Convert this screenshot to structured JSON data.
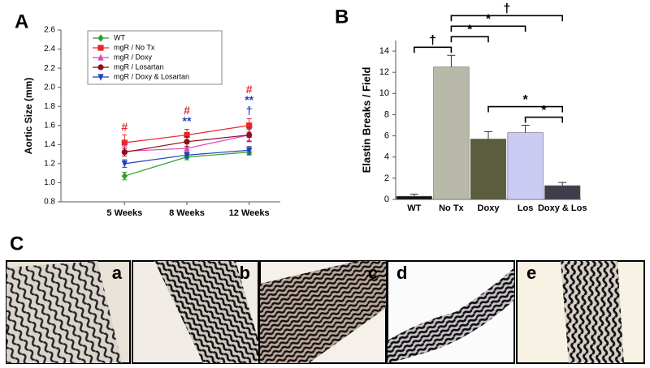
{
  "panel_labels": [
    "A",
    "B",
    "C"
  ],
  "chart_data": [
    {
      "type": "line",
      "ylabel": "Aortic Size (mm)",
      "categories": [
        "5 Weeks",
        "8 Weeks",
        "12 Weeks"
      ],
      "ylim": [
        0.8,
        2.6
      ],
      "yticks": [
        0.8,
        {
          "value": 1,
          "label": "1.0"
        },
        1.2,
        1.4,
        1.6,
        1.8,
        {
          "value": 2,
          "label": "2.0"
        },
        2.2,
        2.4,
        2.6
      ],
      "legend": "top-left",
      "series": [
        {
          "name": "WT",
          "color": "#2e9e2e",
          "marker": "diamond",
          "values": [
            1.07,
            1.27,
            1.32
          ],
          "errors": [
            0.04,
            0.03,
            0.03
          ]
        },
        {
          "name": "mgR / No Tx",
          "color": "#e8262a",
          "marker": "square",
          "values": [
            1.42,
            1.5,
            1.6
          ],
          "errors": [
            0.08,
            0.06,
            0.07
          ]
        },
        {
          "name": "mgR / Doxy",
          "color": "#e040c0",
          "marker": "triangle",
          "values": [
            1.33,
            1.36,
            1.5
          ],
          "errors": [
            0.05,
            0.05,
            0.06
          ]
        },
        {
          "name": "mgR / Losartan",
          "color": "#8b0f1a",
          "marker": "circle",
          "values": [
            1.32,
            1.43,
            1.5
          ],
          "errors": [
            0.04,
            0.05,
            0.07
          ]
        },
        {
          "name": "mgR / Doxy & Losartan",
          "color": "#1f3fbf",
          "marker": "triangle-down",
          "values": [
            1.2,
            1.29,
            1.34
          ],
          "errors": [
            0.04,
            0.03,
            0.04
          ]
        }
      ],
      "annotations": [
        {
          "text": "#",
          "color": "#e8262a",
          "at": "5 Weeks"
        },
        {
          "text": "**",
          "color": "#1f3fbf",
          "at": "8 Weeks"
        },
        {
          "text": "#",
          "color": "#e8262a",
          "at": "8 Weeks"
        },
        {
          "text": "†",
          "color": "#1f3fbf",
          "at": "12 Weeks"
        },
        {
          "text": "**",
          "color": "#1f3fbf",
          "at": "12 Weeks"
        },
        {
          "text": "#",
          "color": "#e8262a",
          "at": "12 Weeks"
        }
      ]
    },
    {
      "type": "bar",
      "ylabel": "Elastin Breaks / Field",
      "categories": [
        "WT",
        "No Tx",
        "Doxy",
        "Los",
        "Doxy & Los"
      ],
      "values": [
        0.3,
        12.5,
        5.7,
        6.3,
        1.3
      ],
      "errors": [
        0.2,
        1.1,
        0.7,
        0.7,
        0.3
      ],
      "colors": [
        "#111111",
        "#b9b9aa",
        "#5c5c3e",
        "#cacaf2",
        "#3e3e4c"
      ],
      "ylim": [
        0,
        15
      ],
      "yticks": [
        0,
        2,
        4,
        6,
        8,
        10,
        12,
        14
      ],
      "brackets": [
        {
          "from": "Los",
          "to": "Doxy & Los",
          "text": "*"
        },
        {
          "from": "Doxy",
          "to": "Doxy & Los",
          "text": "*"
        },
        {
          "from": "WT",
          "to": "No Tx",
          "text": "†"
        },
        {
          "from": "No Tx",
          "to": "Doxy",
          "text": "*"
        },
        {
          "from": "No Tx",
          "to": "Los",
          "text": "*"
        },
        {
          "from": "No Tx",
          "to": "Doxy & Los",
          "text": "†"
        }
      ]
    }
  ],
  "images": {
    "labels": [
      "a",
      "b",
      "c",
      "d",
      "e"
    ]
  }
}
